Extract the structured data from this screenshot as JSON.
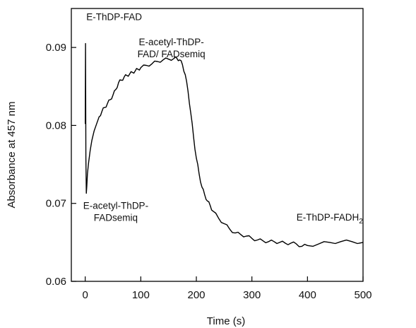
{
  "chart_data": {
    "type": "line",
    "title": "",
    "xlabel": "Time (s)",
    "ylabel": "Absorbance at 457 nm",
    "xlim": [
      -25,
      500
    ],
    "ylim": [
      0.06,
      0.095
    ],
    "xticks": [
      0,
      100,
      200,
      300,
      400,
      500
    ],
    "yticks": [
      0.06,
      0.07,
      0.08,
      0.09
    ],
    "xtick_labels": [
      "0",
      "100",
      "200",
      "300",
      "400",
      "500"
    ],
    "ytick_labels": [
      "0.06",
      "0.07",
      "0.08",
      "0.09"
    ],
    "grid": false,
    "legend": "none",
    "line_color": "#000000",
    "series": [
      {
        "x": [
          0,
          0.5,
          1.2,
          2,
          2.8,
          4,
          6,
          9,
          12,
          16,
          20,
          25,
          30,
          35,
          40,
          45,
          50,
          55,
          60,
          65,
          70,
          75,
          80,
          85,
          90,
          95,
          100,
          110,
          120,
          130,
          140,
          150,
          160,
          165,
          170,
          175,
          180,
          185,
          190,
          195,
          200,
          205,
          210,
          215,
          220,
          225,
          230,
          240,
          250,
          260,
          270,
          280,
          290,
          300,
          310,
          320,
          330,
          340,
          350,
          360,
          370,
          380,
          390,
          400,
          420,
          440,
          460,
          480,
          500
        ],
        "y": [
          0.0802,
          0.0905,
          0.0758,
          0.0713,
          0.0722,
          0.0738,
          0.0752,
          0.0768,
          0.0781,
          0.0793,
          0.0801,
          0.0811,
          0.0818,
          0.0823,
          0.0828,
          0.0833,
          0.0839,
          0.0846,
          0.0855,
          0.0858,
          0.0862,
          0.0864,
          0.0866,
          0.0868,
          0.087,
          0.0872,
          0.0874,
          0.0877,
          0.0879,
          0.0882,
          0.0884,
          0.0885,
          0.0886,
          0.0886,
          0.0884,
          0.0878,
          0.0865,
          0.0844,
          0.0816,
          0.0785,
          0.0758,
          0.0738,
          0.0721,
          0.0711,
          0.0703,
          0.0697,
          0.069,
          0.0681,
          0.0674,
          0.0667,
          0.0662,
          0.066,
          0.0658,
          0.0655,
          0.0653,
          0.0652,
          0.0651,
          0.0651,
          0.065,
          0.0649,
          0.0649,
          0.0648,
          0.0645,
          0.0646,
          0.0648,
          0.065,
          0.0651,
          0.0651,
          0.065
        ]
      }
    ],
    "annotations": [
      {
        "lines": [
          "E-ThDP-FAD"
        ],
        "x": 2,
        "y": 0.0935,
        "anchor": "start"
      },
      {
        "lines": [
          "E-acetyl-ThDP-",
          "FAD/ FADsemiq"
        ],
        "x": 155,
        "y": 0.0903,
        "anchor": "middle"
      },
      {
        "lines": [
          "E-acetyl-ThDP-",
          "FADsemiq"
        ],
        "x": 55,
        "y": 0.0693,
        "anchor": "middle"
      },
      {
        "lines": [
          "E-ThDP-FADH"
        ],
        "sub": "2",
        "x": 440,
        "y": 0.0678,
        "anchor": "middle"
      }
    ]
  }
}
